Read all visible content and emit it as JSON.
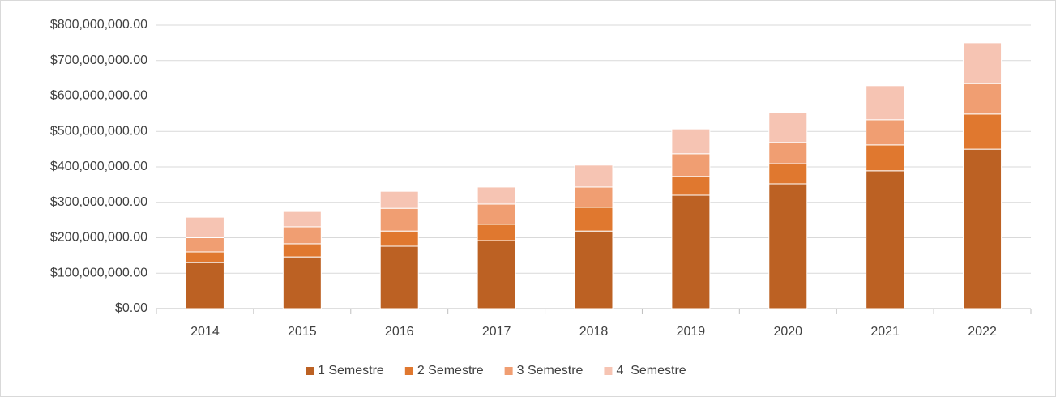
{
  "chart_data": {
    "type": "stacked_bar",
    "categories": [
      "2014",
      "2015",
      "2016",
      "2017",
      "2018",
      "2019",
      "2020",
      "2021",
      "2022"
    ],
    "series": [
      {
        "name": "1 Semestre",
        "color": "#bc6123",
        "values": [
          130000000,
          146000000,
          176000000,
          192000000,
          219000000,
          320000000,
          352000000,
          389000000,
          450000000
        ]
      },
      {
        "name": "2 Semestre",
        "color": "#e0782f",
        "values": [
          30000000,
          37000000,
          43000000,
          46000000,
          67000000,
          53000000,
          57000000,
          73000000,
          99000000
        ]
      },
      {
        "name": "3 Semestre",
        "color": "#f09e72",
        "values": [
          40000000,
          48000000,
          64000000,
          57000000,
          57000000,
          64000000,
          60000000,
          71000000,
          86000000
        ]
      },
      {
        "name": "4  Semestre",
        "color": "#f6c4b3",
        "values": [
          58000000,
          43000000,
          48000000,
          48000000,
          62000000,
          70000000,
          84000000,
          96000000,
          115000000
        ]
      }
    ],
    "ylim": [
      0,
      800000000
    ],
    "yticks": [
      {
        "value": 0,
        "label": "$0.00"
      },
      {
        "value": 100000000,
        "label": "$100,000,000.00"
      },
      {
        "value": 200000000,
        "label": "$200,000,000.00"
      },
      {
        "value": 300000000,
        "label": "$300,000,000.00"
      },
      {
        "value": 400000000,
        "label": "$400,000,000.00"
      },
      {
        "value": 500000000,
        "label": "$500,000,000.00"
      },
      {
        "value": 600000000,
        "label": "$600,000,000.00"
      },
      {
        "value": 700000000,
        "label": "$700,000,000.00"
      },
      {
        "value": 800000000,
        "label": "$800,000,000.00"
      }
    ],
    "grid": true,
    "legend": "bottom"
  }
}
